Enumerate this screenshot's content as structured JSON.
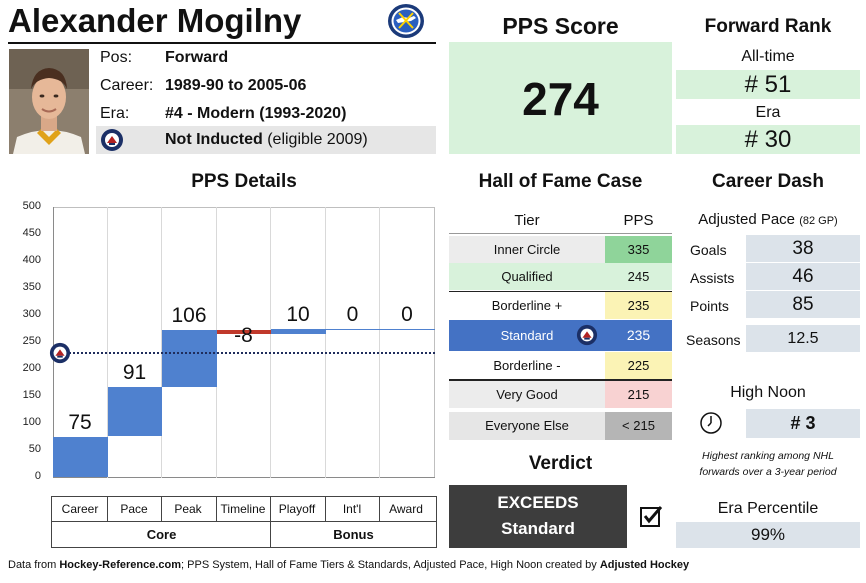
{
  "player": {
    "name": "Alexander Mogilny",
    "pos_label": "Pos:",
    "pos": "Forward",
    "career_label": "Career:",
    "career": "1989-90 to 2005-06",
    "era_label": "Era:",
    "era": "#4 - Modern (1993-2020)",
    "hof_status": "Not Inducted",
    "hof_eligible": "(eligible 2009)"
  },
  "pps_score": {
    "title": "PPS Score",
    "value": "274"
  },
  "forward_rank": {
    "title": "Forward Rank",
    "alltime_label": "All-time",
    "alltime_value": "# 51",
    "era_label": "Era",
    "era_value": "# 30"
  },
  "pps_details": {
    "title": "PPS Details",
    "legend_cells": [
      "Career",
      "Pace",
      "Peak",
      "Timeline",
      "Playoff",
      "Int'l",
      "Award"
    ],
    "legend_groups": [
      "Core",
      "Bonus"
    ]
  },
  "chart_data": {
    "type": "bar",
    "subtype": "waterfall",
    "categories": [
      "Career",
      "Pace",
      "Peak",
      "Timeline",
      "Playoff",
      "Int'l",
      "Award"
    ],
    "values": [
      75,
      91,
      106,
      -8,
      10,
      0,
      0
    ],
    "value_labels": [
      "75",
      "91",
      "106",
      "-8",
      "10",
      "0",
      "0"
    ],
    "ylim": [
      0,
      500
    ],
    "yticks": [
      "0",
      "50",
      "100",
      "150",
      "200",
      "250",
      "300",
      "350",
      "400",
      "450",
      "500"
    ],
    "reference_line": 232,
    "colors": {
      "positive": "#4f81cf",
      "negative": "#c0392b",
      "reference": "#1f2d5c"
    }
  },
  "hof_case": {
    "title": "Hall of Fame Case",
    "col_tier": "Tier",
    "col_pps": "PPS",
    "tiers": [
      {
        "name": "Inner Circle",
        "pps": "335"
      },
      {
        "name": "Qualified",
        "pps": "245"
      },
      {
        "name": "Borderline +",
        "pps": "235"
      },
      {
        "name": "Standard",
        "pps": "235"
      },
      {
        "name": "Borderline -",
        "pps": "225"
      },
      {
        "name": "Very Good",
        "pps": "215"
      },
      {
        "name": "Everyone Else",
        "pps": "< 215"
      }
    ]
  },
  "verdict": {
    "title": "Verdict",
    "line1": "EXCEEDS",
    "line2": "Standard"
  },
  "career_dash": {
    "title": "Career Dash",
    "pace_label": "Adjusted Pace",
    "pace_note": "(82 GP)",
    "goals_label": "Goals",
    "goals": "38",
    "assists_label": "Assists",
    "assists": "46",
    "points_label": "Points",
    "points": "85",
    "seasons_label": "Seasons",
    "seasons": "12.5"
  },
  "high_noon": {
    "title": "High Noon",
    "value": "# 3",
    "note1": "Highest ranking among NHL",
    "note2": "forwards over a 3-year period"
  },
  "era_percentile": {
    "title": "Era Percentile",
    "value": "99%"
  },
  "footer": {
    "p1": "Data from ",
    "b1": "Hockey-Reference.com",
    "p2": "; PPS System, Hall of Fame Tiers & Standards, Adjusted Pace, High Noon created by ",
    "b2": "Adjusted Hockey"
  }
}
